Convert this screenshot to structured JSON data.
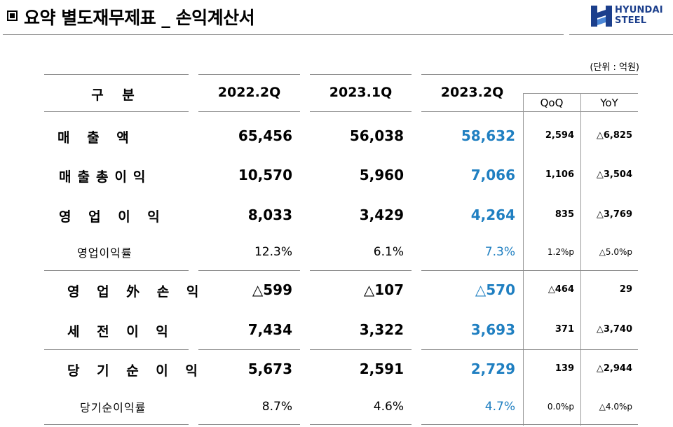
{
  "header": {
    "title": "요약 별도재무제표 _ 손익계산서",
    "logo_line1": "HYUNDAI",
    "logo_line2": "STEEL",
    "brand_color": "#1c3f8c"
  },
  "unit": "(단위 : 억원)",
  "table": {
    "col_headers": {
      "category": "구 분",
      "p1": "2022.2Q",
      "p2": "2023.1Q",
      "p3": "2023.2Q",
      "qoq": "QoQ",
      "yoy": "YoY"
    },
    "rows": [
      {
        "label": "매 출 액",
        "p1": "65,456",
        "p2": "56,038",
        "p3": "58,632",
        "qoq": "2,594",
        "yoy": "△6,825"
      },
      {
        "label": "매출총이익",
        "p1": "10,570",
        "p2": "5,960",
        "p3": "7,066",
        "qoq": "1,106",
        "yoy": "△3,504"
      },
      {
        "label": "영 업 이 익",
        "p1": "8,033",
        "p2": "3,429",
        "p3": "4,264",
        "qoq": "835",
        "yoy": "△3,769"
      },
      {
        "label": "영업이익률",
        "p1": "12.3%",
        "p2": "6.1%",
        "p3": "7.3%",
        "qoq": "1.2%p",
        "yoy": "△5.0%p"
      },
      {
        "label": "영 업 外 손 익",
        "p1": "△599",
        "p2": "△107",
        "p3": "△570",
        "qoq": "△464",
        "yoy": "29"
      },
      {
        "label": "세 전 이 익",
        "p1": "7,434",
        "p2": "3,322",
        "p3": "3,693",
        "qoq": "371",
        "yoy": "△3,740"
      },
      {
        "label": "당 기 순 이 익",
        "p1": "5,673",
        "p2": "2,591",
        "p3": "2,729",
        "qoq": "139",
        "yoy": "△2,944"
      },
      {
        "label": "당기순이익률",
        "p1": "8.7%",
        "p2": "4.6%",
        "p3": "4.7%",
        "qoq": "0.0%p",
        "yoy": "△4.0%p"
      }
    ],
    "highlight_color": "#1f7fc1"
  }
}
